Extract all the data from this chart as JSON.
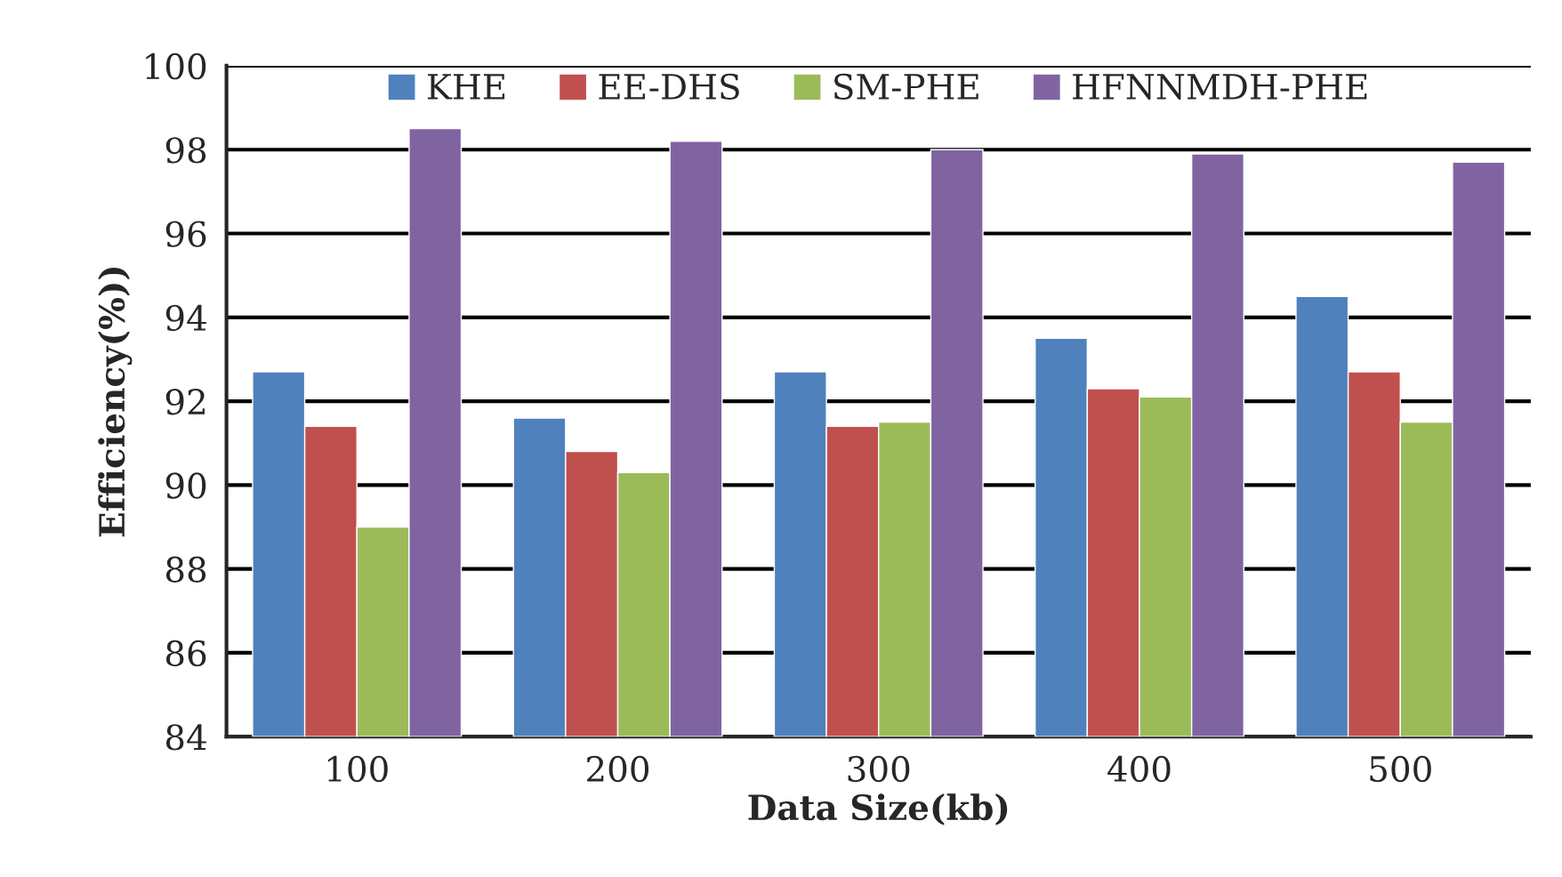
{
  "chart_data": {
    "type": "bar",
    "xlabel": "Data Size(kb)",
    "ylabel": "Efficiency(%))",
    "categories": [
      "100",
      "200",
      "300",
      "400",
      "500"
    ],
    "series": [
      {
        "name": "KHE",
        "color": "#4f81bd",
        "values": [
          92.7,
          91.6,
          92.7,
          93.5,
          94.5
        ]
      },
      {
        "name": "EE-DHS",
        "color": "#c0504d",
        "values": [
          91.4,
          90.8,
          91.4,
          92.3,
          92.7
        ]
      },
      {
        "name": "SM-PHE",
        "color": "#9bbb59",
        "values": [
          89.0,
          90.3,
          91.5,
          92.1,
          91.5
        ]
      },
      {
        "name": "HFNNMDH-PHE",
        "color": "#8064a2",
        "values": [
          98.5,
          98.2,
          98.0,
          97.9,
          97.7
        ]
      }
    ],
    "ylim": [
      84,
      100
    ],
    "yticks": [
      84,
      86,
      88,
      90,
      92,
      94,
      96,
      98,
      100
    ],
    "grid": "y",
    "legend": "top"
  }
}
